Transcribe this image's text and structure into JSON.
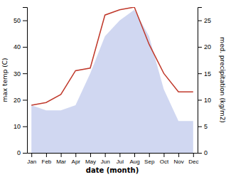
{
  "chart_data": {
    "type": "line",
    "categories": [
      "Jan",
      "Feb",
      "Mar",
      "Apr",
      "May",
      "Jun",
      "Jul",
      "Aug",
      "Sep",
      "Oct",
      "Nov",
      "Dec"
    ],
    "series": [
      {
        "type": "area",
        "axis": "y2",
        "color": "#b0bce8",
        "values": [
          9.0,
          8.0,
          8.0,
          9.0,
          15.0,
          22.0,
          25.0,
          27.0,
          22.0,
          12.0,
          6.0,
          6.0
        ]
      },
      {
        "type": "line",
        "color": "#c0392b",
        "values": [
          18.0,
          19.0,
          22.0,
          31.0,
          32.0,
          52.0,
          54.0,
          55.0,
          41.0,
          30.0,
          23.0,
          23.0
        ]
      }
    ],
    "xlabel": "date (month)",
    "ylabel": "max temp (C)",
    "y2label": "med. precipitation (kg/m2)",
    "ylim": [
      0,
      55
    ],
    "yticks": [
      0,
      10,
      20,
      30,
      40,
      50
    ],
    "y2lim": [
      0,
      27.5
    ],
    "y2ticks": [
      0,
      5,
      10,
      15,
      20,
      25
    ]
  }
}
